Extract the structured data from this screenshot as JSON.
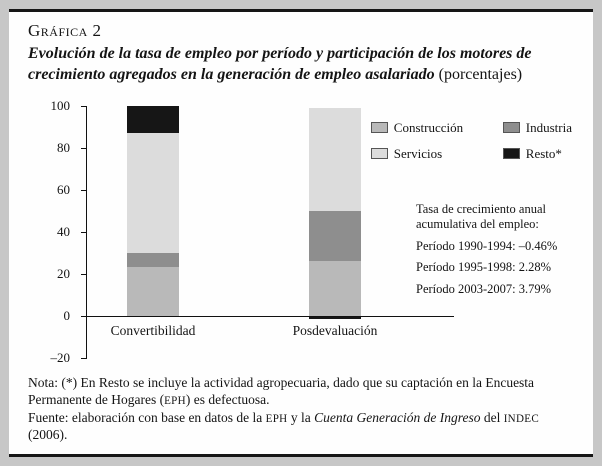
{
  "header": {
    "label": "Gráfica",
    "number": "2",
    "subtitle": "Evolución de la tasa de empleo por período y participación de los motores de crecimiento agregados en la generación de empleo asalariado",
    "subtitle_suffix": " (porcentajes)"
  },
  "chart_data": {
    "type": "bar",
    "stacked": true,
    "categories": [
      "Convertibilidad",
      "Posdevaluación"
    ],
    "series": [
      {
        "name": "Construcción",
        "color": "#b9b9b9",
        "values": [
          23,
          26
        ]
      },
      {
        "name": "Industria",
        "color": "#8e8e8e",
        "values": [
          7,
          24
        ]
      },
      {
        "name": "Servicios",
        "color": "#dcdcdc",
        "values": [
          57,
          49
        ]
      },
      {
        "name": "Resto*",
        "color": "#161616",
        "values": [
          13,
          -1.5
        ]
      }
    ],
    "ylim": [
      -20,
      100
    ],
    "yticks": [
      100,
      80,
      60,
      40,
      20,
      0,
      -20
    ],
    "grid": false,
    "legend_position": "top-right",
    "annotation": {
      "line1": "Tasa de crecimiento anual",
      "line2": "acumulativa del empleo:",
      "period1": "Período 1990-1994: –0.46%",
      "period2": "Período 1995-1998: 2.28%",
      "period3": "Período 2003-2007: 3.79%"
    }
  },
  "footer": {
    "note_pre": "Nota: (*) En Resto se incluye la actividad agropecuaria, dado que su captación en la Encuesta Permanente de Hogares (",
    "note_eph": "EPH",
    "note_post": ") es defectuosa.",
    "source_pre": "Fuente: elaboración con base en datos de la ",
    "source_eph": "EPH",
    "source_mid": " y la ",
    "source_title": "Cuenta Generación de Ingreso",
    "source_mid2": " del ",
    "source_indec": "INDEC",
    "source_post": " (2006)."
  }
}
